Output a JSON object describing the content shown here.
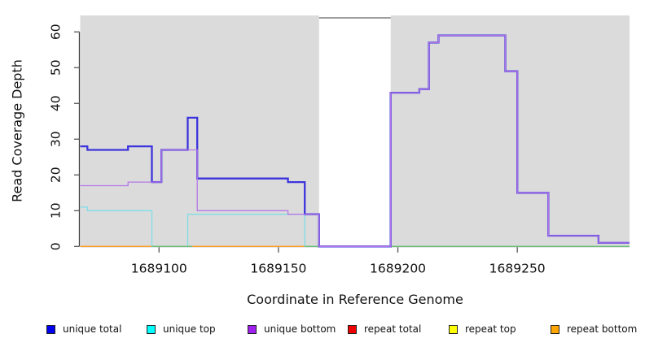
{
  "chart_data": {
    "type": "line",
    "style": "step-after coverage plot",
    "title": "",
    "xlabel": "Coordinate in Reference Genome",
    "ylabel": "Read Coverage Depth",
    "xlim": [
      1689067,
      1689297
    ],
    "ylim": [
      0,
      64.6
    ],
    "x_ticks": [
      1689100,
      1689150,
      1689200,
      1689250
    ],
    "y_ticks": [
      0,
      10,
      20,
      30,
      40,
      50,
      60
    ],
    "grid": false,
    "plot_background": {
      "shaded_color": "#DBDBDB",
      "shaded_regions": [
        [
          1689067,
          1689167
        ],
        [
          1689197,
          1689297
        ]
      ],
      "white_gap_region": [
        1689167,
        1689197
      ],
      "white_gap_top_border_color": "#909090"
    },
    "series": [
      {
        "name": "unique total",
        "legend_color": "#0000EE",
        "line_color": "#3C34DC",
        "line_width": 2.3,
        "z": 6,
        "steps": [
          [
            1689067,
            28
          ],
          [
            1689070,
            27
          ],
          [
            1689087,
            28
          ],
          [
            1689097,
            18
          ],
          [
            1689101,
            27
          ],
          [
            1689112,
            36
          ],
          [
            1689116,
            19
          ],
          [
            1689154,
            18
          ],
          [
            1689161,
            9
          ],
          [
            1689167,
            0
          ],
          [
            1689197,
            43
          ],
          [
            1689209,
            44
          ],
          [
            1689213,
            57
          ],
          [
            1689217,
            59
          ],
          [
            1689245,
            49
          ],
          [
            1689250,
            15
          ],
          [
            1689263,
            3
          ],
          [
            1689284,
            1
          ],
          [
            1689297,
            1
          ]
        ]
      },
      {
        "name": "unique top",
        "legend_color": "#00FFFF",
        "line_color": "#7FDDE8",
        "line_width": 1.3,
        "z": 4,
        "steps": [
          [
            1689067,
            11
          ],
          [
            1689070,
            10
          ],
          [
            1689097,
            0
          ],
          [
            1689112,
            9
          ],
          [
            1689161,
            0
          ],
          [
            1689297,
            0
          ]
        ]
      },
      {
        "name": "unique bottom",
        "legend_color": "#A020F0",
        "line_color": "#B478E8",
        "line_width": 1.3,
        "z": 7,
        "steps": [
          [
            1689067,
            17
          ],
          [
            1689087,
            18
          ],
          [
            1689101,
            27
          ],
          [
            1689116,
            10
          ],
          [
            1689154,
            9
          ],
          [
            1689167,
            0
          ],
          [
            1689197,
            43
          ],
          [
            1689209,
            44
          ],
          [
            1689213,
            57
          ],
          [
            1689217,
            59
          ],
          [
            1689245,
            49
          ],
          [
            1689250,
            15
          ],
          [
            1689263,
            3
          ],
          [
            1689284,
            1
          ],
          [
            1689297,
            1
          ]
        ]
      },
      {
        "name": "repeat total",
        "legend_color": "#EE0000",
        "line_color": "#EE0000",
        "line_width": 1.2,
        "z": 1,
        "steps": [
          [
            1689067,
            0
          ],
          [
            1689297,
            0
          ]
        ]
      },
      {
        "name": "repeat top",
        "legend_color": "#FFFF00",
        "line_color": "#FFFF00",
        "line_width": 1.2,
        "z": 2,
        "steps": [
          [
            1689067,
            0
          ],
          [
            1689297,
            0
          ]
        ]
      },
      {
        "name": "repeat bottom",
        "legend_color": "#FFA500",
        "line_color": "#FF9C26",
        "line_width": 1.4,
        "z": 3,
        "steps": [
          [
            1689067,
            0
          ],
          [
            1689297,
            0
          ]
        ]
      }
    ],
    "baseline_blend_segments": [
      {
        "from": 1689097,
        "to": 1689114,
        "color": "#69BE76",
        "z": 5
      },
      {
        "from": 1689161,
        "to": 1689167,
        "color": "#69BE76",
        "z": 5
      },
      {
        "from": 1689197,
        "to": 1689297,
        "color": "#69BE76",
        "z": 5
      }
    ]
  },
  "legend": {
    "swatch_border_color": "#222222",
    "items": [
      {
        "label": "unique total",
        "color": "#0000EE"
      },
      {
        "label": "unique top",
        "color": "#00FFFF"
      },
      {
        "label": "unique bottom",
        "color": "#A020F0"
      },
      {
        "label": "repeat total",
        "color": "#EE0000"
      },
      {
        "label": "repeat top",
        "color": "#FFFF00"
      },
      {
        "label": "repeat bottom",
        "color": "#FFA500"
      }
    ]
  }
}
